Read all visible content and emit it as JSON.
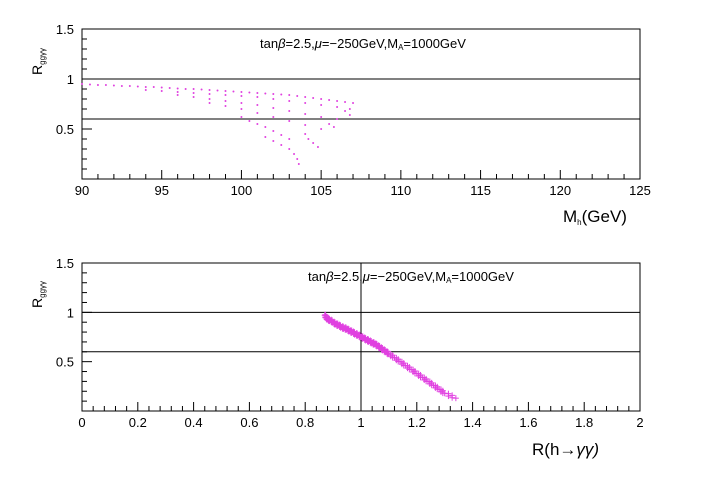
{
  "chart_data": [
    {
      "type": "scatter",
      "title": "",
      "annotation": "tanβ=2.5,μ=−250GeV,Mₐ=1000GeV",
      "annotation_parts": [
        "tan",
        "β",
        "=2.5,",
        "μ",
        "=−250GeV,M",
        "A",
        "=1000GeV"
      ],
      "xlabel": "M",
      "xlabel_sub": "h",
      "xlabel_unit": "(GeV)",
      "ylabel": "R",
      "ylabel_sub": "ggγγ",
      "xlim": [
        90,
        125
      ],
      "ylim": [
        0,
        1.5
      ],
      "x_ticks": [
        "90",
        "95",
        "100",
        "105",
        "110",
        "115",
        "120",
        "125"
      ],
      "y_ticks": [
        "0.5",
        "1",
        "1.5"
      ],
      "reference_lines_y": [
        0.6,
        1.0
      ],
      "marker": "dot",
      "color": "#e040e0",
      "series": [
        {
          "points": [
            [
              90.0,
              0.95
            ],
            [
              90.5,
              0.945
            ],
            [
              91.0,
              0.94
            ],
            [
              91.5,
              0.94
            ],
            [
              92.0,
              0.935
            ],
            [
              92.5,
              0.93
            ],
            [
              93.0,
              0.93
            ],
            [
              93.5,
              0.925
            ],
            [
              94.0,
              0.92
            ],
            [
              94.5,
              0.92
            ],
            [
              95.0,
              0.915
            ],
            [
              95.5,
              0.91
            ],
            [
              96.0,
              0.905
            ],
            [
              96.5,
              0.9
            ],
            [
              97.0,
              0.9
            ],
            [
              97.5,
              0.895
            ],
            [
              98.0,
              0.89
            ],
            [
              98.5,
              0.885
            ],
            [
              99.0,
              0.88
            ],
            [
              99.5,
              0.875
            ],
            [
              100.0,
              0.87
            ],
            [
              100.5,
              0.865
            ],
            [
              101.0,
              0.86
            ],
            [
              101.5,
              0.855
            ],
            [
              102.0,
              0.85
            ],
            [
              102.5,
              0.845
            ],
            [
              103.0,
              0.84
            ],
            [
              103.5,
              0.83
            ],
            [
              104.0,
              0.82
            ],
            [
              104.5,
              0.81
            ],
            [
              105.0,
              0.8
            ],
            [
              105.5,
              0.79
            ],
            [
              106.0,
              0.78
            ],
            [
              106.5,
              0.77
            ],
            [
              107.0,
              0.76
            ],
            [
              94.0,
              0.89
            ],
            [
              95.0,
              0.88
            ],
            [
              96.0,
              0.87
            ],
            [
              97.0,
              0.86
            ],
            [
              98.0,
              0.85
            ],
            [
              99.0,
              0.84
            ],
            [
              100.0,
              0.83
            ],
            [
              101.0,
              0.82
            ],
            [
              102.0,
              0.8
            ],
            [
              103.0,
              0.78
            ],
            [
              104.0,
              0.76
            ],
            [
              105.0,
              0.74
            ],
            [
              106.0,
              0.72
            ],
            [
              106.8,
              0.7
            ],
            [
              96.0,
              0.84
            ],
            [
              97.0,
              0.82
            ],
            [
              98.0,
              0.8
            ],
            [
              99.0,
              0.78
            ],
            [
              100.0,
              0.76
            ],
            [
              101.0,
              0.74
            ],
            [
              102.0,
              0.71
            ],
            [
              103.0,
              0.68
            ],
            [
              104.0,
              0.65
            ],
            [
              105.0,
              0.62
            ],
            [
              106.0,
              0.6
            ],
            [
              98.0,
              0.76
            ],
            [
              99.0,
              0.73
            ],
            [
              100.0,
              0.7
            ],
            [
              101.0,
              0.66
            ],
            [
              102.0,
              0.62
            ],
            [
              103.0,
              0.58
            ],
            [
              104.0,
              0.54
            ],
            [
              105.0,
              0.5
            ],
            [
              100.0,
              0.62
            ],
            [
              100.5,
              0.58
            ],
            [
              101.0,
              0.55
            ],
            [
              101.5,
              0.52
            ],
            [
              102.0,
              0.48
            ],
            [
              102.5,
              0.44
            ],
            [
              103.0,
              0.4
            ],
            [
              101.5,
              0.42
            ],
            [
              102.0,
              0.38
            ],
            [
              102.5,
              0.34
            ],
            [
              103.0,
              0.3
            ],
            [
              103.3,
              0.25
            ],
            [
              103.5,
              0.2
            ],
            [
              103.6,
              0.15
            ],
            [
              104.0,
              0.45
            ],
            [
              104.2,
              0.4
            ],
            [
              104.5,
              0.36
            ],
            [
              104.8,
              0.32
            ],
            [
              106.5,
              0.68
            ],
            [
              106.8,
              0.64
            ],
            [
              105.5,
              0.55
            ],
            [
              105.8,
              0.52
            ]
          ]
        }
      ]
    },
    {
      "type": "scatter",
      "title": "",
      "annotation": "tanβ=2.5,μ=−250GeV,Mₐ=1000GeV",
      "annotation_parts": [
        "tan",
        "β",
        "=2.5,",
        "μ",
        "=−250GeV,M",
        "A",
        "=1000GeV"
      ],
      "xlabel": "R(h",
      "xlabel_arrow": "→",
      "xlabel_tail": "γγ)",
      "ylabel": "R",
      "ylabel_sub": "ggγγ",
      "xlim": [
        0,
        2
      ],
      "ylim": [
        0,
        1.5
      ],
      "x_ticks": [
        "0",
        "0.2",
        "0.4",
        "0.6",
        "0.8",
        "1",
        "1.2",
        "1.4",
        "1.6",
        "1.8",
        "2"
      ],
      "y_ticks": [
        "0.5",
        "1",
        "1.5"
      ],
      "reference_lines_y": [
        0.6,
        1.0
      ],
      "reference_lines_x": [
        1.0
      ],
      "marker": "cross",
      "color": "#e040e0",
      "series": [
        {
          "points": [
            [
              0.87,
              0.97
            ],
            [
              0.875,
              0.95
            ],
            [
              0.88,
              0.93
            ],
            [
              0.89,
              0.92
            ],
            [
              0.9,
              0.9
            ],
            [
              0.91,
              0.88
            ],
            [
              0.92,
              0.87
            ],
            [
              0.93,
              0.85
            ],
            [
              0.94,
              0.84
            ],
            [
              0.95,
              0.83
            ],
            [
              0.96,
              0.81
            ],
            [
              0.97,
              0.8
            ],
            [
              0.98,
              0.78
            ],
            [
              0.99,
              0.77
            ],
            [
              1.0,
              0.75
            ],
            [
              1.01,
              0.74
            ],
            [
              1.02,
              0.72
            ],
            [
              1.03,
              0.71
            ],
            [
              1.04,
              0.69
            ],
            [
              1.05,
              0.68
            ],
            [
              1.06,
              0.66
            ],
            [
              1.07,
              0.64
            ],
            [
              1.08,
              0.62
            ],
            [
              1.09,
              0.6
            ],
            [
              1.1,
              0.58
            ],
            [
              1.12,
              0.54
            ],
            [
              1.14,
              0.5
            ],
            [
              1.16,
              0.46
            ],
            [
              1.18,
              0.42
            ],
            [
              1.2,
              0.38
            ],
            [
              1.22,
              0.34
            ],
            [
              1.24,
              0.3
            ],
            [
              1.26,
              0.26
            ],
            [
              1.28,
              0.22
            ],
            [
              1.3,
              0.18
            ],
            [
              1.34,
              0.13
            ]
          ]
        }
      ]
    }
  ]
}
